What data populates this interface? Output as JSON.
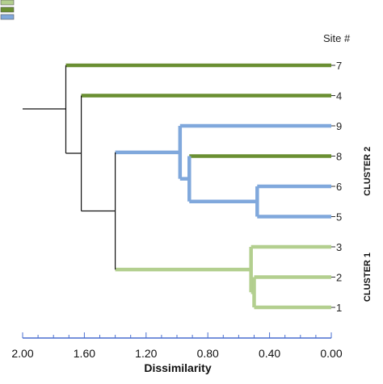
{
  "chart_data": {
    "type": "dendrogram",
    "title": "",
    "xlabel": "Dissimilarity",
    "site_header": "Site #",
    "x_reversed": true,
    "xlim": [
      0,
      2.0
    ],
    "major_ticks": [
      2.0,
      1.6,
      1.2,
      0.8,
      0.4,
      0.0
    ],
    "tick_labels": [
      "2.00",
      "1.60",
      "1.20",
      "0.80",
      "0.40",
      "0.00"
    ],
    "minor_tick_step": 0.1,
    "leaf_order": [
      "7",
      "4",
      "9",
      "8",
      "6",
      "5",
      "3",
      "2",
      "1"
    ],
    "leaf_groups": {
      "7": "dark",
      "4": "dark",
      "9": "blue",
      "8": "dark",
      "6": "blue",
      "5": "blue",
      "3": "light",
      "2": "light",
      "1": "light"
    },
    "nodes": [
      {
        "id": "a",
        "children": [
          "2",
          "1"
        ],
        "height": 0.5,
        "group": "light"
      },
      {
        "id": "b",
        "children": [
          "3",
          "a"
        ],
        "height": 0.52,
        "group": "light"
      },
      {
        "id": "c",
        "children": [
          "6",
          "5"
        ],
        "height": 0.48,
        "group": "blue"
      },
      {
        "id": "d",
        "children": [
          "8",
          "c"
        ],
        "height": 0.92,
        "group": "blue"
      },
      {
        "id": "e",
        "children": [
          "9",
          "d"
        ],
        "height": 0.98,
        "group": "blue"
      },
      {
        "id": "f",
        "children": [
          "e",
          "b"
        ],
        "height": 1.4,
        "group": "black"
      },
      {
        "id": "g",
        "children": [
          "4",
          "f"
        ],
        "height": 1.62,
        "group": "black"
      },
      {
        "id": "h",
        "children": [
          "7",
          "g"
        ],
        "height": 1.72,
        "group": "black"
      }
    ],
    "root_stem": 2.0,
    "clusters": [
      {
        "label": "CLUSTER 2",
        "sites": [
          "9",
          "8",
          "6",
          "5"
        ]
      },
      {
        "label": "CLUSTER 1",
        "sites": [
          "3",
          "2",
          "1"
        ]
      }
    ],
    "legend_swatches": [
      "light",
      "dark",
      "blue"
    ],
    "legend_placement": "top-left",
    "colors": {
      "light": "#b3cf8f",
      "dark": "#6a8f32",
      "blue": "#80a8dc",
      "black": "#111111",
      "axis": "#4a6fd0"
    }
  }
}
